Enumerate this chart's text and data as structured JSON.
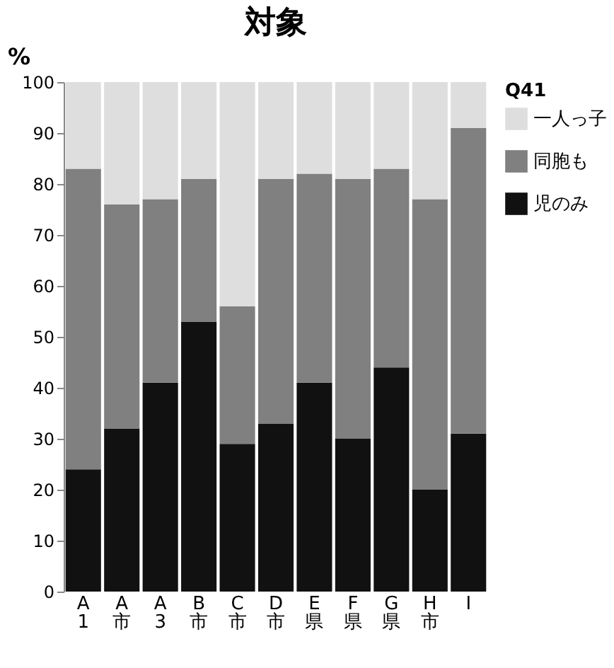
{
  "chart_data": {
    "type": "bar",
    "title": "対象",
    "ylabel": "%",
    "legend_title": "Q41",
    "stacked": true,
    "categories": [
      "A1",
      "A市",
      "A3",
      "B市",
      "C市",
      "D市",
      "E県",
      "F県",
      "G県",
      "H市",
      "I"
    ],
    "series": [
      {
        "name": "児のみ",
        "color": "#111111",
        "values": [
          24,
          32,
          41,
          53,
          29,
          33,
          41,
          30,
          44,
          20,
          31
        ]
      },
      {
        "name": "同胞も",
        "color": "#808080",
        "values": [
          59,
          44,
          36,
          28,
          27,
          48,
          41,
          51,
          39,
          57,
          60
        ]
      },
      {
        "name": "一人っ子",
        "color": "#dedede",
        "values": [
          17,
          24,
          23,
          19,
          44,
          19,
          18,
          19,
          17,
          23,
          9
        ]
      }
    ],
    "ylim": [
      0,
      100
    ],
    "yticks": [
      0,
      10,
      20,
      30,
      40,
      50,
      60,
      70,
      80,
      90,
      100
    ],
    "grid": false,
    "legend": "right"
  }
}
